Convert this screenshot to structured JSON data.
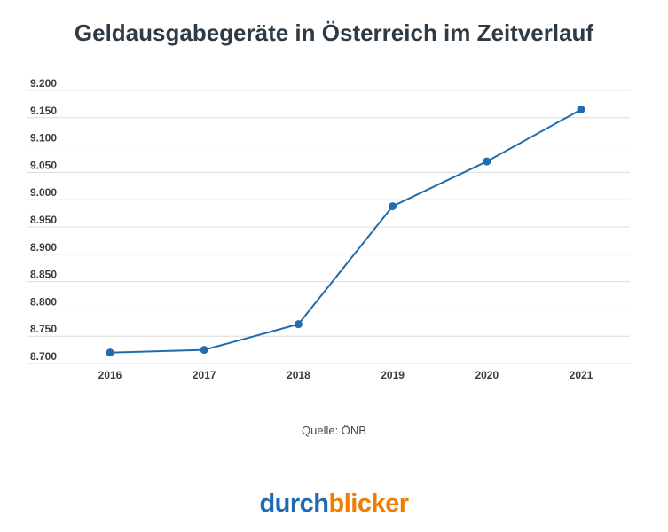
{
  "title": "Geldausgabegeräte in Österreich im Zeitverlauf",
  "source": "Quelle: ÖNB",
  "logo": {
    "part1": "durch",
    "part2": "blicker",
    "color1": "#1e6bb0",
    "color2": "#f07d00"
  },
  "chart_data": {
    "type": "line",
    "title": "Geldausgabegeräte in Österreich im Zeitverlauf",
    "xlabel": "",
    "ylabel": "",
    "categories": [
      "2016",
      "2017",
      "2018",
      "2019",
      "2020",
      "2021"
    ],
    "series": [
      {
        "values": [
          8720,
          8725,
          8772,
          8988,
          9070,
          9165
        ],
        "color": "#1f6db0"
      }
    ],
    "ylim": [
      8700,
      9200
    ],
    "yticks": [
      8700,
      8750,
      8800,
      8850,
      8900,
      8950,
      9000,
      9050,
      9100,
      9150,
      9200
    ],
    "ytick_labels": [
      "8.700",
      "8.750",
      "8.800",
      "8.850",
      "8.900",
      "8.950",
      "9.000",
      "9.050",
      "9.100",
      "9.150",
      "9.200"
    ],
    "grid": true,
    "legend": "none"
  }
}
